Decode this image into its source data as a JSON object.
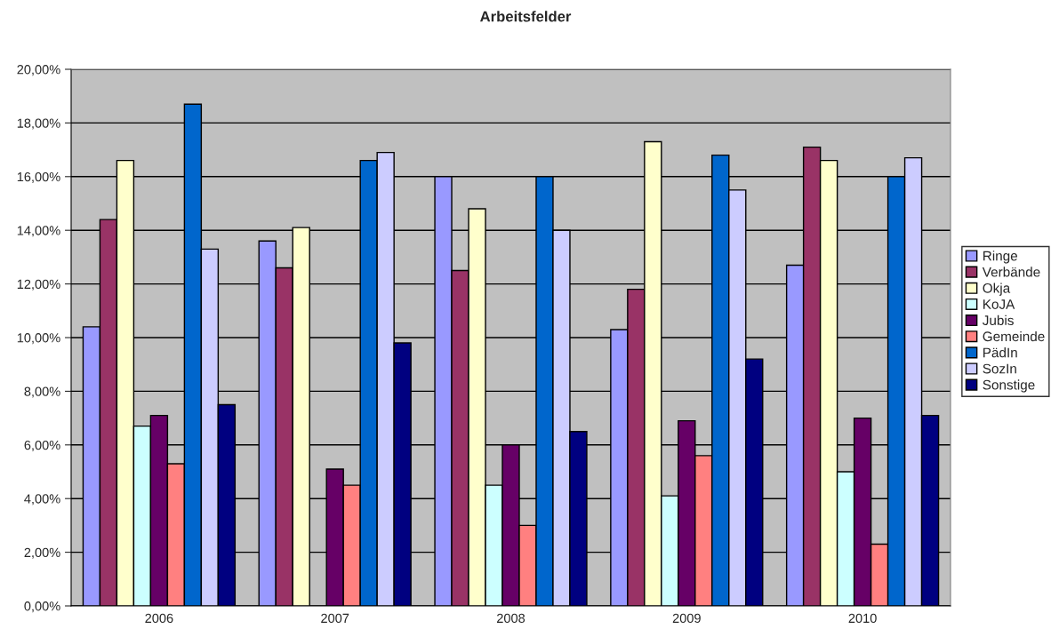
{
  "chart_data": {
    "type": "bar",
    "title": "Arbeitsfelder",
    "categories": [
      "2006",
      "2007",
      "2008",
      "2009",
      "2010"
    ],
    "series": [
      {
        "name": "Ringe",
        "color": "#9999ff",
        "values": [
          10.4,
          13.6,
          16.0,
          10.3,
          12.7
        ]
      },
      {
        "name": "Verbände",
        "color": "#993366",
        "values": [
          14.4,
          12.6,
          12.5,
          11.8,
          17.1
        ]
      },
      {
        "name": "Okja",
        "color": "#ffffcc",
        "values": [
          16.6,
          14.1,
          14.8,
          17.3,
          16.6
        ]
      },
      {
        "name": "KoJA",
        "color": "#ccffff",
        "values": [
          6.7,
          null,
          4.5,
          4.1,
          5.0
        ]
      },
      {
        "name": "Jubis",
        "color": "#660066",
        "values": [
          7.1,
          5.1,
          6.0,
          6.9,
          7.0
        ]
      },
      {
        "name": "Gemeinde",
        "color": "#ff8080",
        "values": [
          5.3,
          4.5,
          3.0,
          5.6,
          2.3
        ]
      },
      {
        "name": "PädIn",
        "color": "#0066cc",
        "values": [
          18.7,
          16.6,
          16.0,
          16.8,
          16.0
        ]
      },
      {
        "name": "SozIn",
        "color": "#ccccff",
        "values": [
          13.3,
          16.9,
          14.0,
          15.5,
          16.7
        ]
      },
      {
        "name": "Sonstige",
        "color": "#000080",
        "values": [
          7.5,
          9.8,
          6.5,
          9.2,
          7.1
        ]
      }
    ],
    "ylim": [
      0,
      20
    ],
    "yticks": [
      {
        "value": 0,
        "label": "0,00%"
      },
      {
        "value": 2,
        "label": "2,00%"
      },
      {
        "value": 4,
        "label": "4,00%"
      },
      {
        "value": 6,
        "label": "6,00%"
      },
      {
        "value": 8,
        "label": "8,00%"
      },
      {
        "value": 10,
        "label": "10,00%"
      },
      {
        "value": 12,
        "label": "12,00%"
      },
      {
        "value": 14,
        "label": "14,00%"
      },
      {
        "value": 16,
        "label": "16,00%"
      },
      {
        "value": 18,
        "label": "18,00%"
      },
      {
        "value": 20,
        "label": "20,00%"
      }
    ],
    "grid": "y",
    "legend": "right"
  }
}
